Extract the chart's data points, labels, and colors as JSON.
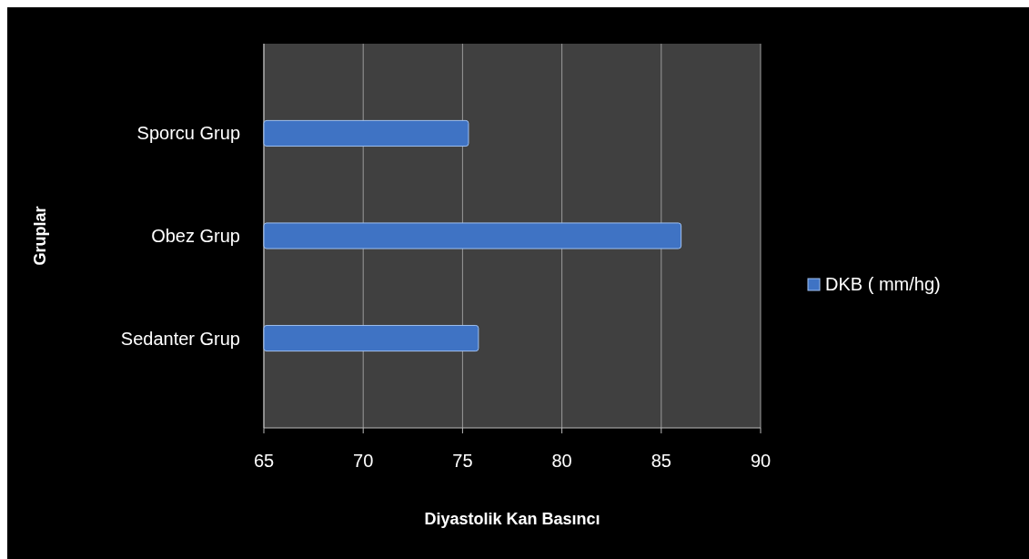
{
  "chart_data": {
    "type": "bar",
    "orientation": "horizontal",
    "categories": [
      "Sporcu Grup",
      "Obez Grup",
      "Sedanter Grup"
    ],
    "series": [
      {
        "name": "DKB ( mm/hg)",
        "color": "#3f73c4",
        "values": [
          75.3,
          86,
          75.8
        ]
      }
    ],
    "xlim": [
      65,
      90
    ],
    "xticks": [
      65,
      70,
      75,
      80,
      85,
      90
    ],
    "xlabel": "Diyastolik Kan Basıncı",
    "ylabel": "Gruplar",
    "grid": "x",
    "legend": "right"
  }
}
